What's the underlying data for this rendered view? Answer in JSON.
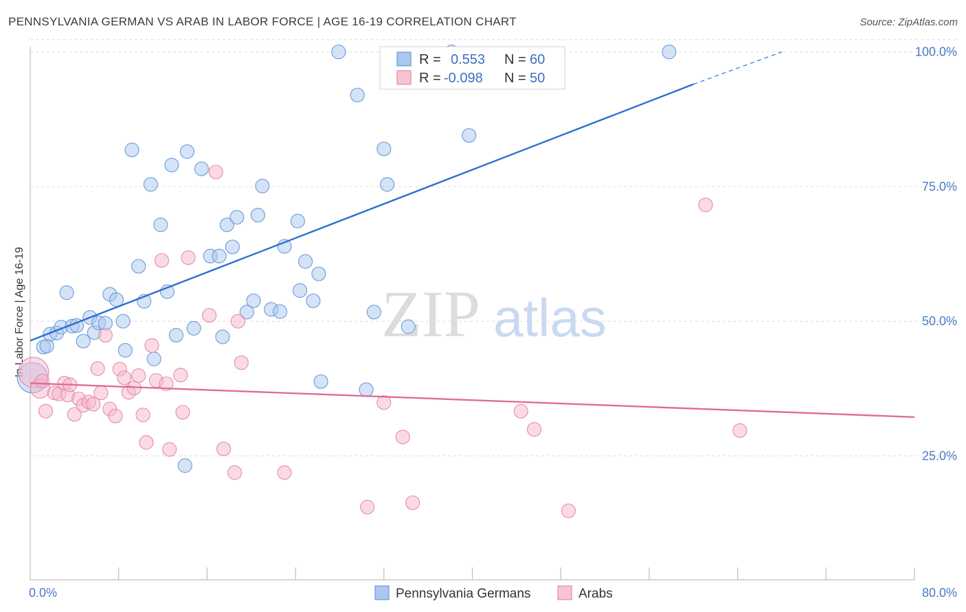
{
  "header": {
    "title": "PENNSYLVANIA GERMAN VS ARAB IN LABOR FORCE | AGE 16-19 CORRELATION CHART",
    "source": "Source: ZipAtlas.com"
  },
  "watermark": {
    "zip": "ZIP",
    "atlas": "atlas"
  },
  "colors": {
    "blue_fill": "#aac8ee",
    "blue_stroke": "#6a9ad8",
    "blue_line": "#2c6fd1",
    "pink_fill": "#f6b8cc",
    "pink_stroke": "#e58aa8",
    "pink_line": "#e06c96",
    "grid": "#dcdcdc"
  },
  "legend": {
    "rows": [
      {
        "r_label": "R =",
        "r_value": "0.553",
        "n_label": "N =",
        "n_value": "60"
      },
      {
        "r_label": "R =",
        "r_value": "-0.098",
        "n_label": "N =",
        "n_value": "50"
      }
    ]
  },
  "chart_data": {
    "type": "scatter",
    "title": "PENNSYLVANIA GERMAN VS ARAB IN LABOR FORCE | AGE 16-19 CORRELATION CHART",
    "xlabel": "",
    "ylabel": "In Labor Force | Age 16-19",
    "xlim": [
      0,
      80
    ],
    "ylim": [
      2,
      102
    ],
    "x_tick_labels": [
      "0.0%",
      "80.0%"
    ],
    "y_ticks": [
      25,
      50,
      75,
      100
    ],
    "y_tick_labels": [
      "25.0%",
      "50.0%",
      "75.0%",
      "100.0%"
    ],
    "grid": true,
    "series": [
      {
        "name": "Pennsylvania Germans",
        "color": "blue",
        "r": 0.553,
        "n": 60,
        "trend": {
          "x0": 0,
          "y0": 46.4,
          "x1": 60,
          "y1": 94,
          "dash_to_x": 68,
          "dash_to_y": 100
        },
        "points": [
          [
            0.2,
            39.5,
            22
          ],
          [
            1.2,
            45.2,
            10
          ],
          [
            1.5,
            45.4,
            10
          ],
          [
            1.8,
            47.6,
            10
          ],
          [
            2.4,
            47.8,
            10
          ],
          [
            2.8,
            48.9,
            10
          ],
          [
            3.3,
            55.3,
            10
          ],
          [
            3.8,
            49.1,
            10
          ],
          [
            4.2,
            49.2,
            10
          ],
          [
            4.8,
            46.3,
            10
          ],
          [
            5.4,
            50.7,
            10
          ],
          [
            5.8,
            47.9,
            10
          ],
          [
            6.2,
            49.7,
            10
          ],
          [
            6.8,
            49.6,
            10
          ],
          [
            7.2,
            55.0,
            10
          ],
          [
            7.8,
            54.0,
            10
          ],
          [
            8.4,
            50.0,
            10
          ],
          [
            8.6,
            44.6,
            10
          ],
          [
            9.2,
            81.8,
            10
          ],
          [
            9.8,
            60.2,
            10
          ],
          [
            10.3,
            53.7,
            10
          ],
          [
            10.9,
            75.4,
            10
          ],
          [
            11.2,
            43.0,
            10
          ],
          [
            11.8,
            67.9,
            10
          ],
          [
            12.4,
            55.5,
            10
          ],
          [
            12.8,
            79.0,
            10
          ],
          [
            13.2,
            47.4,
            10
          ],
          [
            14.2,
            81.5,
            10
          ],
          [
            14.8,
            48.7,
            10
          ],
          [
            15.5,
            78.3,
            10
          ],
          [
            16.3,
            62.1,
            10
          ],
          [
            17.1,
            62.1,
            10
          ],
          [
            17.4,
            47.1,
            10
          ],
          [
            17.8,
            67.9,
            10
          ],
          [
            18.3,
            63.8,
            10
          ],
          [
            18.7,
            69.3,
            10
          ],
          [
            19.6,
            51.7,
            10
          ],
          [
            20.2,
            53.8,
            10
          ],
          [
            20.6,
            69.7,
            10
          ],
          [
            21.0,
            75.1,
            10
          ],
          [
            21.8,
            52.2,
            10
          ],
          [
            22.6,
            51.8,
            10
          ],
          [
            23.0,
            63.9,
            10
          ],
          [
            24.2,
            68.6,
            10
          ],
          [
            24.4,
            55.7,
            10
          ],
          [
            24.9,
            61.1,
            10
          ],
          [
            25.6,
            53.8,
            10
          ],
          [
            26.1,
            58.8,
            10
          ],
          [
            26.3,
            38.8,
            10
          ],
          [
            27.9,
            100.0,
            10
          ],
          [
            29.6,
            92.0,
            10
          ],
          [
            30.4,
            37.3,
            10
          ],
          [
            31.1,
            51.7,
            10
          ],
          [
            32.0,
            82.0,
            10
          ],
          [
            32.3,
            75.4,
            10
          ],
          [
            34.2,
            49.0,
            10
          ],
          [
            38.1,
            100.0,
            10
          ],
          [
            39.7,
            84.5,
            10
          ],
          [
            57.8,
            100.0,
            10
          ],
          [
            14.0,
            23.2,
            10
          ]
        ]
      },
      {
        "name": "Arabs",
        "color": "pink",
        "r": -0.098,
        "n": 50,
        "trend": {
          "x0": 0,
          "y0": 38.5,
          "x1": 80,
          "y1": 32.2
        },
        "points": [
          [
            0.3,
            40.5,
            22
          ],
          [
            0.9,
            37.5,
            14
          ],
          [
            1.1,
            38.9,
            10
          ],
          [
            1.4,
            33.3,
            10
          ],
          [
            2.2,
            36.7,
            10
          ],
          [
            2.6,
            36.5,
            10
          ],
          [
            3.1,
            38.5,
            10
          ],
          [
            3.4,
            36.3,
            10
          ],
          [
            3.6,
            38.2,
            10
          ],
          [
            4.0,
            32.7,
            10
          ],
          [
            4.4,
            35.6,
            10
          ],
          [
            4.8,
            34.4,
            10
          ],
          [
            5.3,
            35.0,
            10
          ],
          [
            5.7,
            34.6,
            10
          ],
          [
            6.1,
            41.2,
            10
          ],
          [
            6.4,
            36.7,
            10
          ],
          [
            6.8,
            47.4,
            10
          ],
          [
            7.2,
            33.7,
            10
          ],
          [
            7.7,
            32.4,
            10
          ],
          [
            8.1,
            41.1,
            10
          ],
          [
            8.5,
            39.5,
            10
          ],
          [
            8.9,
            36.8,
            10
          ],
          [
            9.4,
            37.6,
            10
          ],
          [
            9.8,
            39.9,
            10
          ],
          [
            10.2,
            32.6,
            10
          ],
          [
            10.5,
            27.5,
            10
          ],
          [
            11.0,
            45.5,
            10
          ],
          [
            11.4,
            39.0,
            10
          ],
          [
            11.9,
            61.3,
            10
          ],
          [
            12.3,
            38.4,
            10
          ],
          [
            12.6,
            26.2,
            10
          ],
          [
            13.6,
            40.0,
            10
          ],
          [
            13.8,
            33.1,
            10
          ],
          [
            14.3,
            61.8,
            10
          ],
          [
            16.2,
            51.1,
            10
          ],
          [
            16.8,
            77.7,
            10
          ],
          [
            17.5,
            26.3,
            10
          ],
          [
            18.5,
            21.9,
            10
          ],
          [
            18.8,
            50.0,
            10
          ],
          [
            19.1,
            42.3,
            10
          ],
          [
            23.0,
            21.9,
            10
          ],
          [
            30.5,
            15.5,
            10
          ],
          [
            32.0,
            34.9,
            10
          ],
          [
            33.7,
            28.5,
            10
          ],
          [
            34.6,
            16.3,
            10
          ],
          [
            44.4,
            33.3,
            10
          ],
          [
            45.6,
            29.9,
            10
          ],
          [
            48.7,
            14.8,
            10
          ],
          [
            61.1,
            71.6,
            10
          ],
          [
            64.2,
            29.7,
            10
          ]
        ]
      }
    ]
  }
}
